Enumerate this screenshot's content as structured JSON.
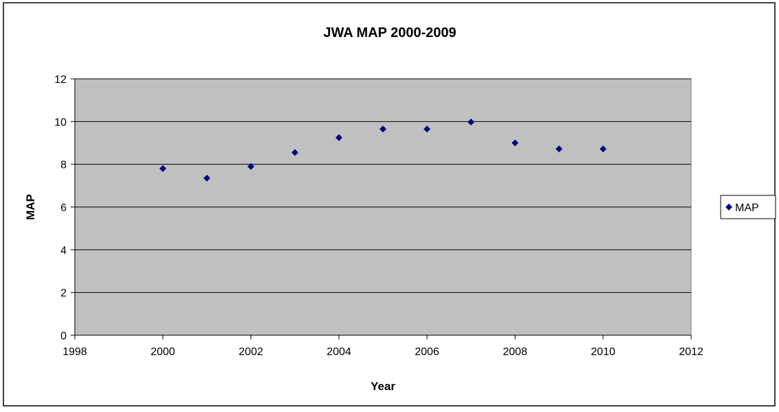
{
  "chart_data": {
    "type": "scatter",
    "title": "JWA MAP 2000-2009",
    "xlabel": "Year",
    "ylabel": "MAP",
    "xlim": [
      1998,
      2012
    ],
    "ylim": [
      0,
      12
    ],
    "x_ticks": [
      1998,
      2000,
      2002,
      2004,
      2006,
      2008,
      2010,
      2012
    ],
    "y_ticks": [
      0,
      2,
      4,
      6,
      8,
      10,
      12
    ],
    "grid": "horizontal",
    "legend": "right",
    "plot_background": "#c0c0c0",
    "series": [
      {
        "name": "MAP",
        "marker": "diamond",
        "color": "#000080",
        "points": [
          {
            "x": 2000,
            "y": 7.8
          },
          {
            "x": 2001,
            "y": 7.35
          },
          {
            "x": 2002,
            "y": 7.9
          },
          {
            "x": 2003,
            "y": 8.55
          },
          {
            "x": 2004,
            "y": 9.25
          },
          {
            "x": 2005,
            "y": 9.65
          },
          {
            "x": 2006,
            "y": 9.65
          },
          {
            "x": 2007,
            "y": 9.98
          },
          {
            "x": 2008,
            "y": 9.0
          },
          {
            "x": 2009,
            "y": 8.72
          },
          {
            "x": 2010,
            "y": 8.72
          }
        ]
      }
    ]
  }
}
